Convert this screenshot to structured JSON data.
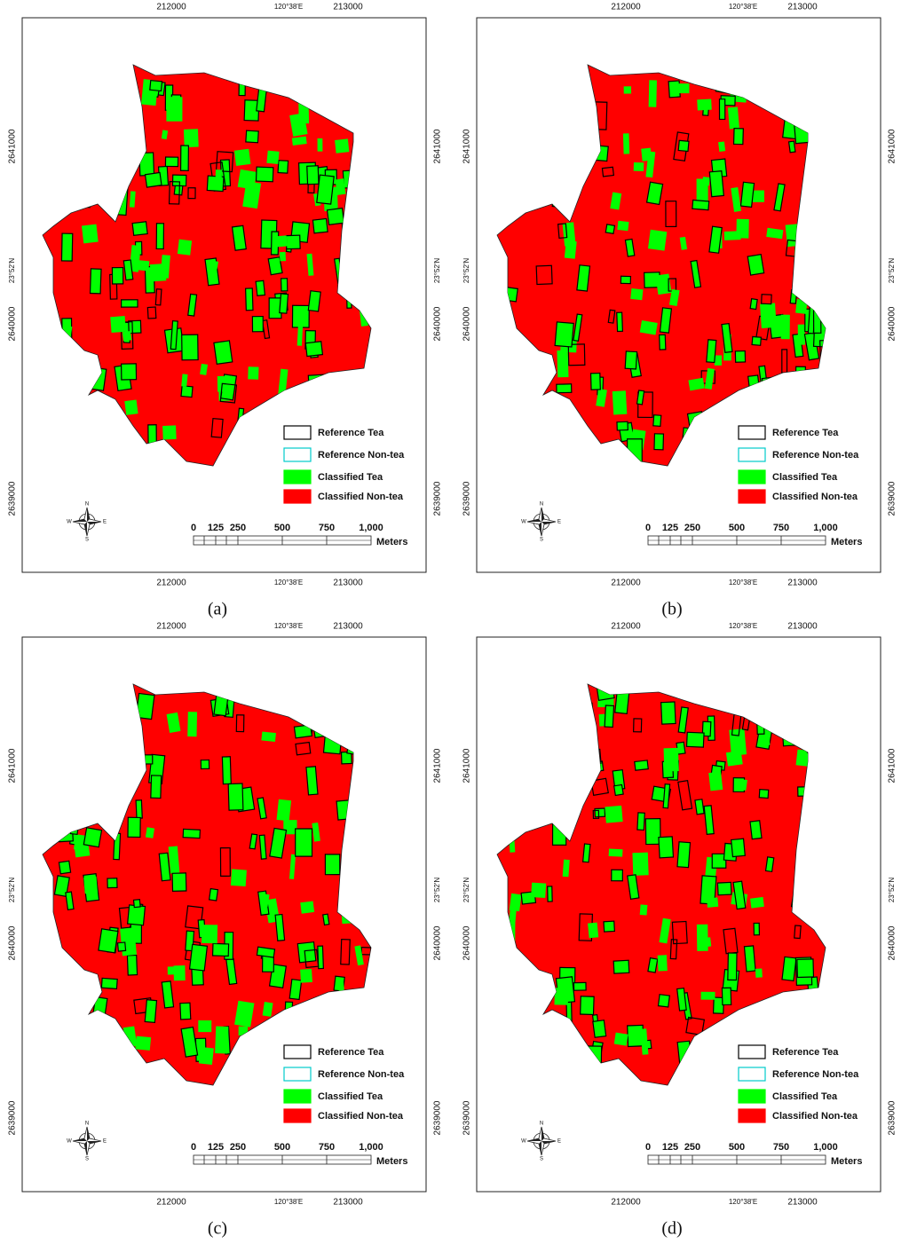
{
  "panels": [
    {
      "caption": "(a)"
    },
    {
      "caption": "(b)"
    },
    {
      "caption": "(c)"
    },
    {
      "caption": "(d)"
    }
  ],
  "map": {
    "x_ticks": [
      "212000",
      "120°38'E",
      "213000"
    ],
    "y_ticks": [
      "2641000",
      "23°52'N",
      "2640000",
      "2639000"
    ],
    "legend": [
      "Reference Tea",
      "Reference Non-tea",
      "Classified Tea",
      "Classified Non-tea"
    ],
    "scale": {
      "labels": [
        "0",
        "125",
        "250",
        "500",
        "750",
        "1,000"
      ],
      "unit": "Meters"
    },
    "compass": [
      "N",
      "E",
      "S",
      "W"
    ]
  }
}
